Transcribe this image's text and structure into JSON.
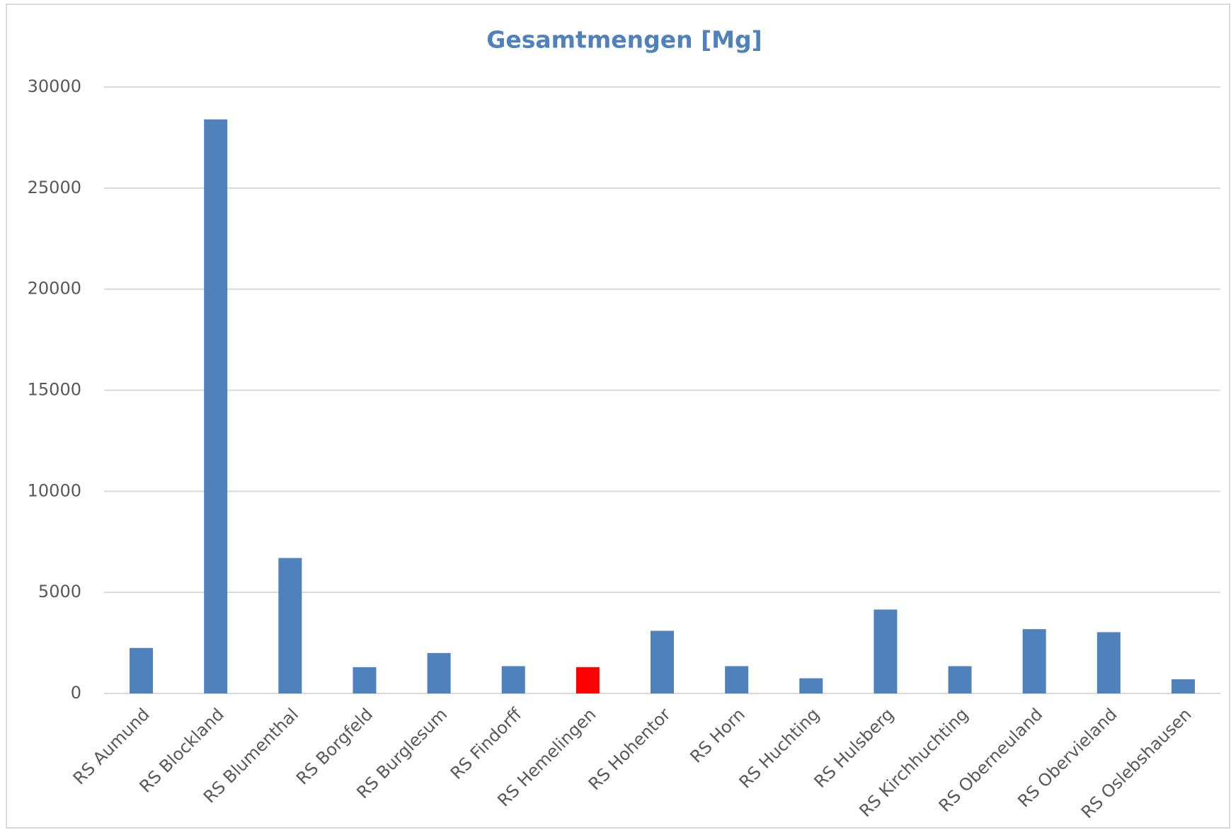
{
  "chart_data": {
    "type": "bar",
    "title": "Gesamtmengen [Mg]",
    "categories": [
      "RS Aumund",
      "RS Blockland",
      "RS Blumenthal",
      "RS Borgfeld",
      "RS Burglesum",
      "RS Findorff",
      "RS Hemelingen",
      "RS Hohentor",
      "RS Horn",
      "RS Huchting",
      "RS Hulsberg",
      "RS Kirchhuchting",
      "RS Oberneuland",
      "RS Obervieland",
      "RS Oslebshausen"
    ],
    "values": [
      2250,
      28400,
      6700,
      1300,
      2000,
      1350,
      1300,
      3100,
      1350,
      750,
      4150,
      1350,
      3180,
      3030,
      700
    ],
    "colors": [
      "#4f81bd",
      "#4f81bd",
      "#4f81bd",
      "#4f81bd",
      "#4f81bd",
      "#4f81bd",
      "#ff0000",
      "#4f81bd",
      "#4f81bd",
      "#4f81bd",
      "#4f81bd",
      "#4f81bd",
      "#4f81bd",
      "#4f81bd",
      "#4f81bd"
    ],
    "ylim": [
      0,
      30000
    ],
    "yticks": [
      0,
      5000,
      10000,
      15000,
      20000,
      25000,
      30000
    ],
    "grid": true
  }
}
